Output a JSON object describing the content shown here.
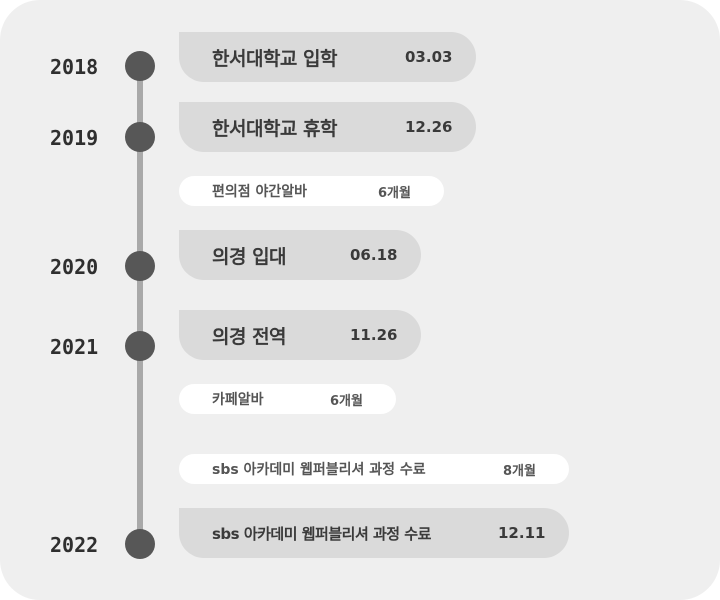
{
  "years": [
    "2018",
    "2019",
    "2020",
    "2021",
    "2022"
  ],
  "events": [
    {
      "label": "한서대학교 입학",
      "date": "03.03"
    },
    {
      "label": "한서대학교 휴학",
      "date": "12.26"
    },
    {
      "label": "편의점 야간알바",
      "date": "6개월"
    },
    {
      "label": "의경 입대",
      "date": "06.18"
    },
    {
      "label": "의경 전역",
      "date": "11.26"
    },
    {
      "label": "카페알바",
      "date": "6개월"
    },
    {
      "label": "sbs 아카데미 웹퍼블리셔 과정 수료",
      "date": "8개월"
    },
    {
      "label": "sbs 아카데미 웹퍼블리셔 과정 수료",
      "date": "12.11"
    }
  ]
}
